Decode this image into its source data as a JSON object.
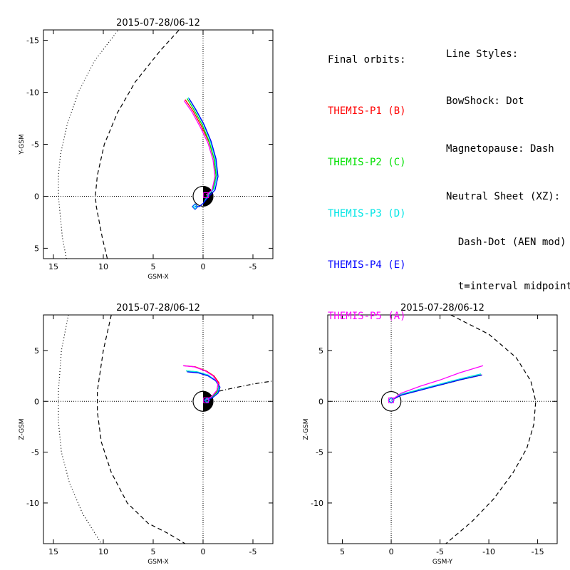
{
  "legend": {
    "heading": "Final orbits:",
    "items": [
      {
        "label": "THEMIS-P1 (B)",
        "color": "#ff0000"
      },
      {
        "label": "THEMIS-P2 (C)",
        "color": "#00e000"
      },
      {
        "label": "THEMIS-P3 (D)",
        "color": "#00e5e5"
      },
      {
        "label": "THEMIS-P4 (E)",
        "color": "#0000ff"
      },
      {
        "label": "THEMIS-P5 (A)",
        "color": "#ff00ff"
      }
    ]
  },
  "styles": {
    "heading": "Line Styles:",
    "lines": [
      "BowShock: Dot",
      "Magnetopause: Dash",
      "Neutral Sheet (XZ):",
      "  Dash-Dot (AEN mod)",
      "  t=interval midpoint"
    ]
  },
  "chart_data": [
    {
      "type": "line",
      "title": "2015-07-28/06-12",
      "xlabel": "GSM-X",
      "ylabel": "Y-GSM",
      "xlim": [
        16,
        -7
      ],
      "ylim": [
        6,
        -16
      ],
      "xticks": [
        15,
        10,
        5,
        0,
        -5
      ],
      "yticks": [
        -15,
        -10,
        -5,
        0,
        5
      ],
      "bowshock": [
        [
          13.7,
          6
        ],
        [
          14.1,
          4
        ],
        [
          14.5,
          0
        ],
        [
          14.5,
          -2
        ],
        [
          14.3,
          -4
        ],
        [
          13.6,
          -7
        ],
        [
          12.5,
          -10
        ],
        [
          10.9,
          -13
        ],
        [
          8.5,
          -16
        ]
      ],
      "magnetopause": [
        [
          9.6,
          6
        ],
        [
          10.1,
          4
        ],
        [
          10.7,
          1
        ],
        [
          10.8,
          0
        ],
        [
          10.6,
          -2
        ],
        [
          9.9,
          -5
        ],
        [
          8.6,
          -8
        ],
        [
          6.8,
          -11
        ],
        [
          4.3,
          -14
        ],
        [
          2.4,
          -16
        ]
      ],
      "series": [
        {
          "color": "#ff0000",
          "points": [
            [
              1.8,
              -9.3
            ],
            [
              1.0,
              -8.2
            ],
            [
              0.2,
              -6.8
            ],
            [
              -0.6,
              -5.2
            ],
            [
              -1.1,
              -3.6
            ],
            [
              -1.3,
              -2.0
            ],
            [
              -1.0,
              -0.7
            ],
            [
              -0.4,
              -0.1
            ]
          ]
        },
        {
          "color": "#00e000",
          "points": [
            [
              1.6,
              -9.4
            ],
            [
              0.9,
              -8.3
            ],
            [
              0.1,
              -6.9
            ],
            [
              -0.6,
              -5.3
            ],
            [
              -1.1,
              -3.6
            ],
            [
              -1.3,
              -2.0
            ],
            [
              -1.0,
              -0.7
            ],
            [
              -0.4,
              -0.1
            ]
          ]
        },
        {
          "color": "#00e5e5",
          "points": [
            [
              1.5,
              -9.5
            ],
            [
              0.8,
              -8.4
            ],
            [
              0.0,
              -7.0
            ],
            [
              -0.7,
              -5.4
            ],
            [
              -1.2,
              -3.7
            ],
            [
              -1.4,
              -2.0
            ],
            [
              -1.1,
              -0.7
            ],
            [
              -0.5,
              -0.1
            ],
            [
              0.0,
              0.7
            ],
            [
              0.4,
              1.0
            ],
            [
              0.8,
              1.0
            ],
            [
              1.0,
              1.1
            ]
          ]
        },
        {
          "color": "#0000ff",
          "points": [
            [
              1.4,
              -9.4
            ],
            [
              0.7,
              -8.3
            ],
            [
              -0.1,
              -6.9
            ],
            [
              -0.8,
              -5.3
            ],
            [
              -1.3,
              -3.6
            ],
            [
              -1.5,
              -1.9
            ],
            [
              -1.2,
              -0.6
            ],
            [
              -0.6,
              0.0
            ],
            [
              0.0,
              0.7
            ],
            [
              0.4,
              1.0
            ],
            [
              0.8,
              1.0
            ]
          ]
        },
        {
          "color": "#ff00ff",
          "points": [
            [
              1.9,
              -9.2
            ],
            [
              1.1,
              -8.1
            ],
            [
              0.3,
              -6.7
            ],
            [
              -0.5,
              -5.1
            ],
            [
              -1.0,
              -3.5
            ],
            [
              -1.2,
              -1.9
            ],
            [
              -0.9,
              -0.6
            ],
            [
              -0.3,
              -0.1
            ]
          ]
        }
      ],
      "neutral_sheet": [],
      "earth_half_shaded": true
    },
    {
      "type": "line",
      "title": "2015-07-28/06-12",
      "xlabel": "GSM-X",
      "ylabel": "Z-GSM",
      "xlim": [
        16,
        -7
      ],
      "ylim": [
        -14,
        8.5
      ],
      "xticks": [
        15,
        10,
        5,
        0,
        -5
      ],
      "yticks": [
        5,
        0,
        -5,
        -10
      ],
      "bowshock": [
        [
          13.5,
          8.5
        ],
        [
          14.2,
          5
        ],
        [
          14.5,
          1
        ],
        [
          14.5,
          -2
        ],
        [
          14.2,
          -5
        ],
        [
          13.4,
          -8
        ],
        [
          12.1,
          -11
        ],
        [
          10.2,
          -14
        ]
      ],
      "magnetopause": [
        [
          9.2,
          8.5
        ],
        [
          10.0,
          5
        ],
        [
          10.6,
          1
        ],
        [
          10.6,
          -1
        ],
        [
          10.2,
          -4
        ],
        [
          9.2,
          -7
        ],
        [
          7.6,
          -10
        ],
        [
          5.5,
          -12
        ],
        [
          3.5,
          -13
        ],
        [
          1.8,
          -14
        ]
      ],
      "series": [
        {
          "color": "#ff0000",
          "points": [
            [
              1.9,
              3.5
            ],
            [
              0.8,
              3.4
            ],
            [
              -0.3,
              3.0
            ],
            [
              -1.1,
              2.5
            ],
            [
              -1.6,
              1.8
            ],
            [
              -1.5,
              1.1
            ],
            [
              -1.0,
              0.5
            ],
            [
              -0.4,
              0.1
            ]
          ]
        },
        {
          "color": "#00e000",
          "points": [
            [
              1.7,
              3.0
            ],
            [
              0.6,
              2.9
            ],
            [
              -0.4,
              2.6
            ],
            [
              -1.2,
              2.1
            ],
            [
              -1.6,
              1.5
            ],
            [
              -1.4,
              0.9
            ],
            [
              -0.9,
              0.4
            ],
            [
              -0.3,
              0.1
            ]
          ]
        },
        {
          "color": "#00e5e5",
          "points": [
            [
              1.7,
              3.0
            ],
            [
              0.6,
              2.9
            ],
            [
              -0.5,
              2.6
            ],
            [
              -1.2,
              2.1
            ],
            [
              -1.6,
              1.5
            ],
            [
              -1.5,
              0.9
            ],
            [
              -1.0,
              0.4
            ],
            [
              -0.4,
              0.1
            ]
          ]
        },
        {
          "color": "#0000ff",
          "points": [
            [
              1.6,
              2.9
            ],
            [
              0.5,
              2.8
            ],
            [
              -0.5,
              2.5
            ],
            [
              -1.3,
              2.0
            ],
            [
              -1.7,
              1.4
            ],
            [
              -1.5,
              0.8
            ],
            [
              -1.0,
              0.4
            ],
            [
              -0.4,
              0.1
            ]
          ]
        },
        {
          "color": "#ff00ff",
          "points": [
            [
              2.0,
              3.5
            ],
            [
              0.9,
              3.4
            ],
            [
              -0.2,
              3.0
            ],
            [
              -1.0,
              2.5
            ],
            [
              -1.5,
              1.8
            ],
            [
              -1.4,
              1.1
            ],
            [
              -0.9,
              0.5
            ],
            [
              -0.3,
              0.1
            ]
          ]
        }
      ],
      "neutral_sheet": [
        [
          -1.6,
          1.0
        ],
        [
          -3.0,
          1.3
        ],
        [
          -5.0,
          1.7
        ],
        [
          -7.0,
          2.0
        ]
      ],
      "earth_half_shaded": true
    },
    {
      "type": "line",
      "title": "2015-07-28/06-12",
      "xlabel": "GSM-Y",
      "ylabel": "Z-GSM",
      "xlim": [
        6.5,
        -17
      ],
      "ylim": [
        -14,
        8.5
      ],
      "xticks": [
        5,
        0,
        -5,
        -10,
        -15
      ],
      "yticks": [
        5,
        0,
        -5,
        -10
      ],
      "bowshock": [],
      "magnetopause": [
        [
          -6.1,
          8.5
        ],
        [
          -10.0,
          6.6
        ],
        [
          -12.8,
          4.3
        ],
        [
          -14.3,
          2.0
        ],
        [
          -14.8,
          0
        ],
        [
          -14.6,
          -2.3
        ],
        [
          -13.9,
          -4.6
        ],
        [
          -12.5,
          -7.0
        ],
        [
          -10.5,
          -9.6
        ],
        [
          -8.3,
          -11.8
        ],
        [
          -5.6,
          -14
        ]
      ],
      "series": [
        {
          "color": "#ff0000",
          "points": [
            [
              -9.3,
              2.6
            ],
            [
              -7.0,
              2.1
            ],
            [
              -5.0,
              1.6
            ],
            [
              -3.0,
              1.2
            ],
            [
              -1.0,
              0.6
            ],
            [
              0.0,
              0.1
            ]
          ]
        },
        {
          "color": "#00e000",
          "points": [
            [
              -9.2,
              2.6
            ],
            [
              -7.0,
              2.1
            ],
            [
              -5.0,
              1.6
            ],
            [
              -3.0,
              1.2
            ],
            [
              -1.0,
              0.6
            ],
            [
              0.0,
              0.1
            ]
          ]
        },
        {
          "color": "#00e5e5",
          "points": [
            [
              -9.2,
              2.7
            ],
            [
              -7.0,
              2.2
            ],
            [
              -5.0,
              1.7
            ],
            [
              -3.0,
              1.2
            ],
            [
              -1.0,
              0.7
            ],
            [
              0.0,
              0.1
            ]
          ]
        },
        {
          "color": "#0000ff",
          "points": [
            [
              -9.3,
              2.6
            ],
            [
              -7.0,
              2.1
            ],
            [
              -5.0,
              1.6
            ],
            [
              -3.0,
              1.1
            ],
            [
              -1.0,
              0.6
            ],
            [
              0.0,
              0.1
            ]
          ]
        },
        {
          "color": "#ff00ff",
          "points": [
            [
              -9.4,
              3.5
            ],
            [
              -7.0,
              2.8
            ],
            [
              -5.0,
              2.1
            ],
            [
              -3.0,
              1.5
            ],
            [
              -1.0,
              0.8
            ],
            [
              0.0,
              0.1
            ]
          ]
        }
      ],
      "neutral_sheet": [],
      "earth_half_shaded": false
    }
  ]
}
